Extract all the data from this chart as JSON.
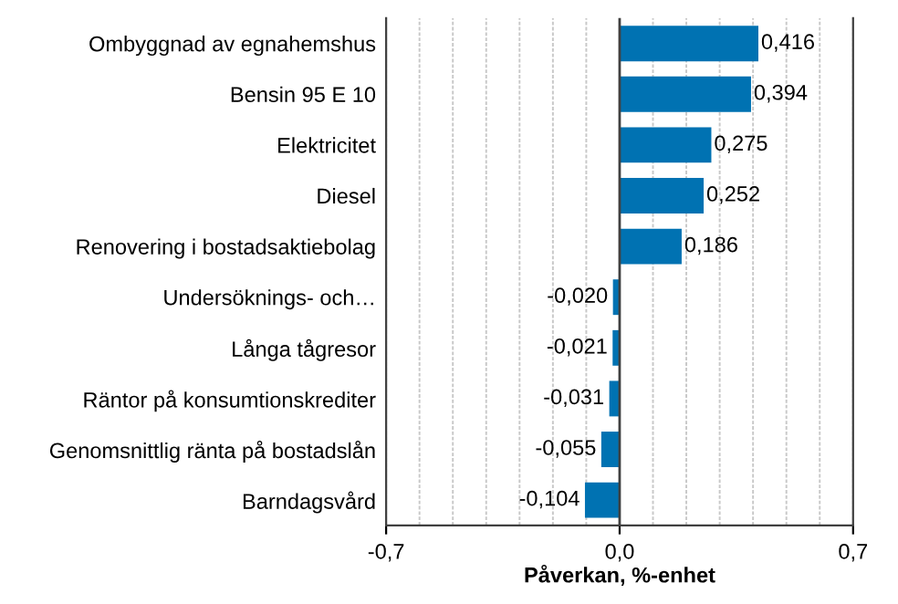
{
  "chart_data": {
    "type": "bar",
    "orientation": "horizontal",
    "xlabel": "Påverkan, %-enhet",
    "categories": [
      "Ombyggnad av egnahemshus",
      "Bensin 95 E 10",
      "Elektricitet",
      "Diesel",
      "Renovering i bostadsaktiebolag",
      "Undersöknings- och…",
      "Långa tågresor",
      "Räntor på konsumtionskrediter",
      "Genomsnittlig ränta på bostadslån",
      "Barndagsvård"
    ],
    "values": [
      0.416,
      0.394,
      0.275,
      0.252,
      0.186,
      -0.02,
      -0.021,
      -0.031,
      -0.055,
      -0.104
    ],
    "value_labels": [
      "0,416",
      "0,394",
      "0,275",
      "0,252",
      "0,186",
      "-0,020",
      "-0,021",
      "-0,031",
      "-0,055",
      "-0,104"
    ],
    "color": "#0072b2",
    "xlim": [
      -0.7,
      0.7
    ],
    "xticks": [
      {
        "value": -0.7,
        "label": "-0,7"
      },
      {
        "value": -0.6,
        "label": null
      },
      {
        "value": -0.5,
        "label": null
      },
      {
        "value": -0.4,
        "label": null
      },
      {
        "value": -0.3,
        "label": null
      },
      {
        "value": -0.2,
        "label": null
      },
      {
        "value": -0.1,
        "label": null
      },
      {
        "value": 0.0,
        "label": "0,0"
      },
      {
        "value": 0.1,
        "label": null
      },
      {
        "value": 0.2,
        "label": null
      },
      {
        "value": 0.3,
        "label": null
      },
      {
        "value": 0.4,
        "label": null
      },
      {
        "value": 0.5,
        "label": null
      },
      {
        "value": 0.6,
        "label": null
      },
      {
        "value": 0.7,
        "label": "0,7"
      }
    ],
    "ref_lines": [
      {
        "axis": "x",
        "value": 0.0,
        "color": "#404040"
      }
    ],
    "grid": "x",
    "legend": false
  }
}
